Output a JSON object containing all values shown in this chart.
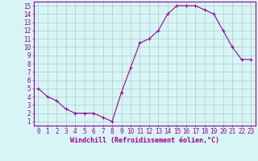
{
  "x": [
    0,
    1,
    2,
    3,
    4,
    5,
    6,
    7,
    8,
    9,
    10,
    11,
    12,
    13,
    14,
    15,
    16,
    17,
    18,
    19,
    20,
    21,
    22,
    23
  ],
  "y": [
    5.0,
    4.0,
    3.5,
    2.5,
    2.0,
    2.0,
    2.0,
    1.5,
    1.0,
    4.5,
    7.5,
    10.5,
    11.0,
    12.0,
    14.0,
    15.0,
    15.0,
    15.0,
    14.5,
    14.0,
    12.0,
    10.0,
    8.5,
    8.5
  ],
  "line_color": "#990099",
  "marker": "+",
  "bg_color": "#d8f5f5",
  "grid_color": "#aacccc",
  "xlabel": "Windchill (Refroidissement éolien,°C)",
  "ylabel_ticks": [
    1,
    2,
    3,
    4,
    5,
    6,
    7,
    8,
    9,
    10,
    11,
    12,
    13,
    14,
    15
  ],
  "xlim": [
    -0.5,
    23.5
  ],
  "ylim": [
    0.5,
    15.5
  ],
  "tick_label_color": "#990099",
  "axis_label_color": "#990099",
  "tick_fontsize": 5.5,
  "xlabel_fontsize": 6.0
}
